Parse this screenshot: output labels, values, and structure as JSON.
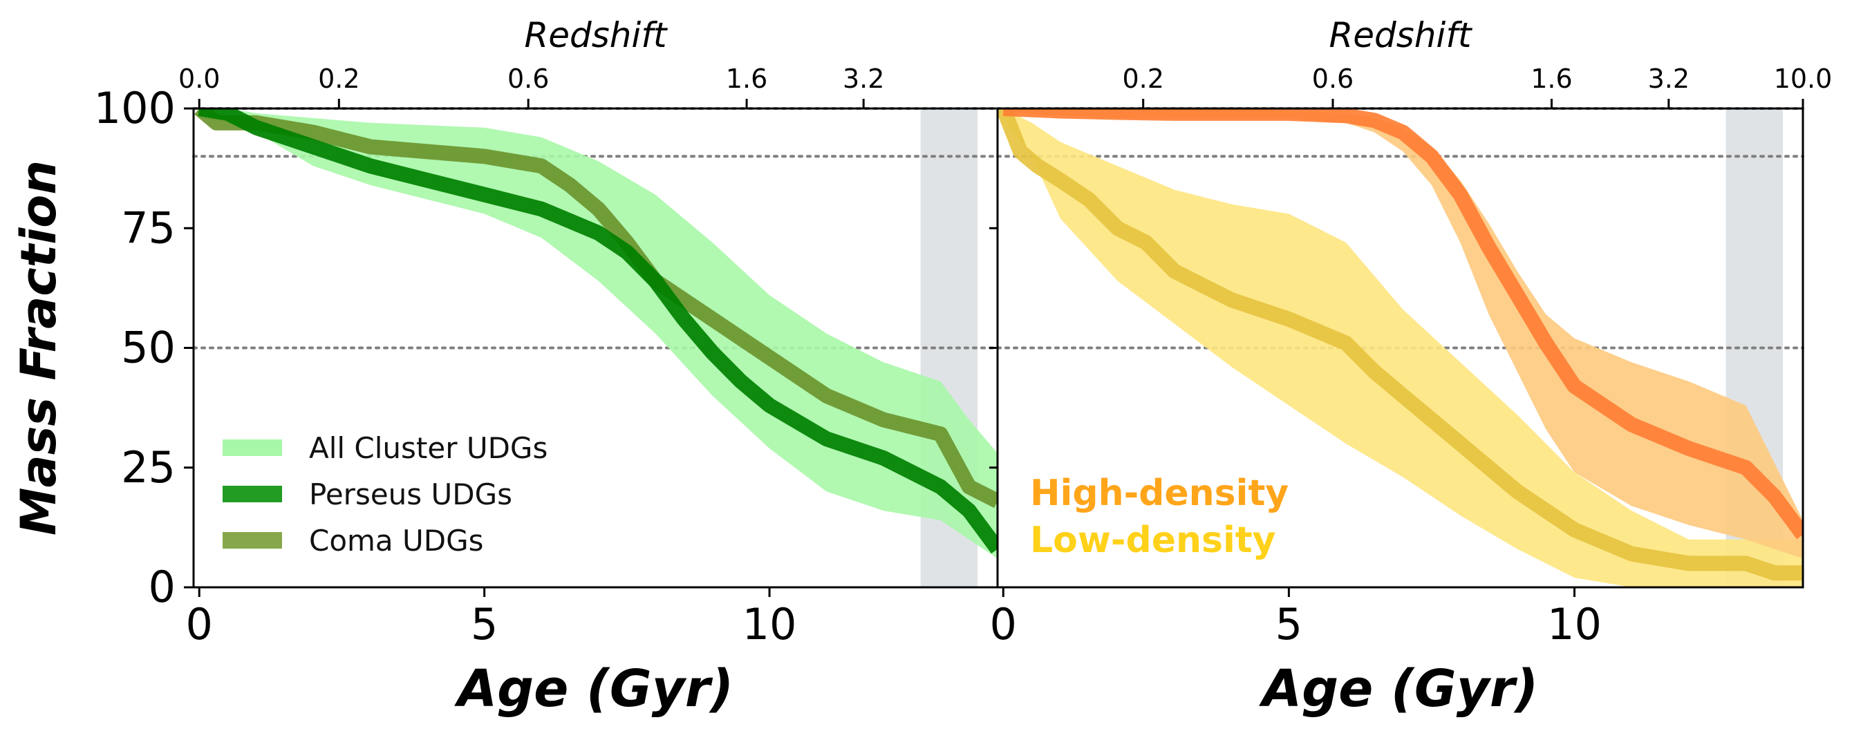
{
  "chart_data": [
    {
      "type": "line",
      "panel": "left",
      "xlabel": "Age (Gyr)",
      "ylabel": "Mass Fraction",
      "top_xlabel": "Redshift",
      "xlim": [
        -0.1,
        14
      ],
      "ylim": [
        0,
        100
      ],
      "x_ticks": [
        0,
        5,
        10
      ],
      "y_ticks": [
        0,
        25,
        50,
        75,
        100
      ],
      "y_tick_labels": [
        "0",
        "25",
        "50",
        "75",
        "100"
      ],
      "top_ticks": [
        {
          "age": 0.0,
          "label": "0.0"
        },
        {
          "age": 2.45,
          "label": "0.2"
        },
        {
          "age": 5.77,
          "label": "0.6"
        },
        {
          "age": 9.6,
          "label": "1.6"
        },
        {
          "age": 11.65,
          "label": "3.2"
        }
      ],
      "hlines": [
        100,
        90,
        50
      ],
      "shaded_band": [
        12.65,
        13.65
      ],
      "series": [
        {
          "name": "All Cluster UDGs",
          "kind": "band",
          "color": "#a8f7a8",
          "x": [
            0,
            0.5,
            1,
            2,
            3,
            4,
            5,
            6,
            7,
            8,
            9,
            10,
            11,
            12,
            13,
            13.5,
            14
          ],
          "upper": [
            100,
            100,
            99,
            98,
            97,
            96.5,
            96,
            94,
            89,
            82,
            72,
            61,
            53,
            47,
            43,
            35,
            28
          ],
          "lower": [
            98,
            97,
            95,
            88,
            84,
            81,
            78,
            73,
            64,
            53,
            40,
            29,
            20,
            16,
            14,
            10,
            6
          ]
        },
        {
          "name": "Coma UDGs",
          "kind": "line",
          "color": "#6b952f",
          "x": [
            0,
            0.3,
            0.6,
            1,
            2,
            3,
            4,
            5,
            6,
            6.5,
            7,
            7.5,
            8,
            9,
            10,
            11,
            12,
            13,
            13.5,
            14
          ],
          "y": [
            100,
            97,
            97,
            97,
            95,
            92,
            91,
            90,
            88,
            84,
            79,
            72,
            64,
            56,
            48,
            40,
            35,
            32,
            21,
            18
          ]
        },
        {
          "name": "Perseus UDGs",
          "kind": "line",
          "color": "#008000",
          "x": [
            0,
            0.5,
            1,
            2,
            3,
            4,
            5,
            6,
            7,
            7.5,
            8,
            8.5,
            9,
            9.5,
            10,
            11,
            12,
            13,
            13.5,
            14
          ],
          "y": [
            100,
            99,
            96,
            92,
            88,
            85,
            82,
            79,
            74,
            70,
            64,
            56,
            49,
            43,
            38,
            31,
            27,
            21,
            16,
            8
          ]
        }
      ],
      "legend": {
        "position": "lower-left",
        "entries": [
          {
            "label": "All Cluster UDGs",
            "color": "#a8f7a8"
          },
          {
            "label": "Perseus UDGs",
            "color": "#229c22"
          },
          {
            "label": "Coma UDGs",
            "color": "#86a84b"
          }
        ]
      }
    },
    {
      "type": "line",
      "panel": "right",
      "xlabel": "Age (Gyr)",
      "top_xlabel": "Redshift",
      "xlim": [
        -0.1,
        14
      ],
      "ylim": [
        0,
        100
      ],
      "x_ticks": [
        0,
        5,
        10
      ],
      "top_ticks": [
        {
          "age": 2.45,
          "label": "0.2"
        },
        {
          "age": 5.77,
          "label": "0.6"
        },
        {
          "age": 9.6,
          "label": "1.6"
        },
        {
          "age": 11.65,
          "label": "3.2"
        },
        {
          "age": 14.0,
          "label": "10.0"
        }
      ],
      "hlines": [
        100,
        90,
        50
      ],
      "shaded_band": [
        12.65,
        13.65
      ],
      "series": [
        {
          "name": "Low-density",
          "kind": "band",
          "color": "#fee680",
          "x": [
            0,
            0.5,
            1,
            2,
            3,
            4,
            5,
            6,
            7,
            8,
            9,
            10,
            11,
            12,
            13,
            14
          ],
          "upper": [
            100,
            97,
            93,
            88,
            83,
            80,
            78,
            72,
            58,
            47,
            36,
            24,
            16,
            10,
            10,
            10
          ],
          "lower": [
            98,
            90,
            77,
            64,
            55,
            46,
            38,
            30,
            23,
            15,
            8,
            2,
            0,
            0,
            0,
            0
          ]
        },
        {
          "name": "High-density",
          "kind": "band",
          "color": "#fdca7e",
          "x": [
            0,
            2,
            4,
            5,
            6,
            6.5,
            7,
            7.5,
            8,
            8.5,
            9,
            9.5,
            10,
            11,
            12,
            13,
            14
          ],
          "upper": [
            100,
            100,
            100,
            99.5,
            99,
            98,
            96,
            92,
            85,
            76,
            66,
            57,
            52,
            47,
            43,
            38,
            14
          ],
          "lower": [
            99,
            98,
            98,
            98,
            97,
            95,
            91,
            84,
            72,
            57,
            45,
            33,
            24,
            17,
            13,
            10,
            6
          ]
        },
        {
          "name": "Low-density",
          "kind": "line",
          "color": "#e6c340",
          "x": [
            0,
            0.3,
            0.6,
            1,
            1.5,
            2,
            2.5,
            3,
            3.5,
            4,
            5,
            6,
            6.5,
            7,
            8,
            9,
            10,
            11,
            12,
            13,
            13.5,
            14
          ],
          "y": [
            100,
            91,
            88,
            85,
            81,
            75,
            72,
            66,
            63,
            60,
            56,
            51,
            45,
            40,
            30,
            20,
            12,
            7,
            5,
            5,
            3,
            3
          ]
        },
        {
          "name": "High-density",
          "kind": "line",
          "color": "#ff7f35",
          "x": [
            0,
            1,
            2,
            3,
            4,
            5,
            6,
            6.5,
            7,
            7.5,
            8,
            8.5,
            9,
            9.5,
            10,
            11,
            12,
            13,
            13.5,
            14
          ],
          "y": [
            100,
            99.5,
            99.2,
            99,
            99,
            99,
            98.5,
            97.5,
            95,
            90,
            82,
            71,
            61,
            51,
            42,
            34,
            29,
            25,
            19,
            11
          ]
        }
      ],
      "annotations": [
        {
          "label": "High-density",
          "color": "#ffa51a"
        },
        {
          "label": "Low-density",
          "color": "#ffd119"
        }
      ]
    }
  ]
}
